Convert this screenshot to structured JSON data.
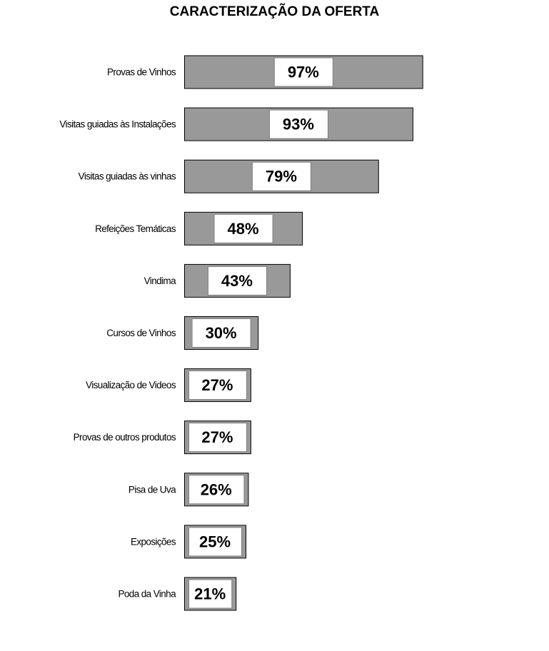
{
  "chart_data": {
    "type": "bar",
    "orientation": "horizontal",
    "title": "CARACTERIZAÇÃO DA OFERTA",
    "categories": [
      "Provas de Vinhos",
      "Visitas guiadas às Instalações",
      "Visitas guiadas às vinhas",
      "Refeições Temáticas",
      "Vindima",
      "Cursos de Vinhos",
      "Visualização de Videos",
      "Provas de outros produtos",
      "Pisa de Uva",
      "Exposições",
      "Poda da Vinha"
    ],
    "values": [
      97,
      93,
      79,
      48,
      43,
      30,
      27,
      27,
      26,
      25,
      21
    ],
    "value_labels": [
      "97%",
      "93%",
      "79%",
      "48%",
      "43%",
      "30%",
      "27%",
      "27%",
      "26%",
      "25%",
      "21%"
    ],
    "xlim": [
      0,
      100
    ],
    "xlabel": "",
    "ylabel": "",
    "grid": false,
    "legend": "none",
    "colors": {
      "bar_fill": "#999999",
      "bar_border": "#000000",
      "label_box": "#ffffff",
      "label_box_border": "#808080"
    }
  }
}
